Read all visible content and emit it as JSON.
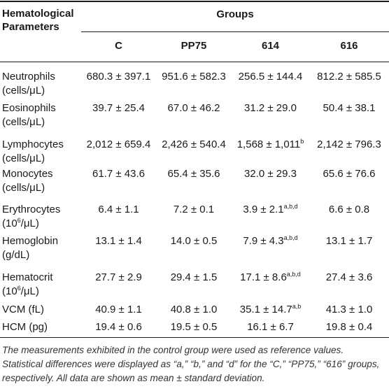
{
  "header": {
    "param_line1": "Hematological",
    "param_line2": "Parameters",
    "groups": "Groups",
    "columns": [
      "C",
      "PP75",
      "614",
      "616"
    ]
  },
  "rows": [
    {
      "label1": "Neutrophils",
      "label2": "(cells/μL)",
      "c": "680.3 ± 397.1",
      "pp75": "951.6 ± 582.3",
      "g614": "256.5 ± 144.4",
      "g614_sup": "",
      "g616": "812.2 ± 585.5"
    },
    {
      "label1": "Eosinophils",
      "label2": "(cells/μL)",
      "c": "39.7 ± 25.4",
      "pp75": "67.0 ± 46.2",
      "g614": "31.2 ± 29.0",
      "g614_sup": "",
      "g616": "50.4 ± 38.1"
    },
    {
      "label1": "Lymphocytes",
      "label2": "(cells/μL)",
      "c": "2,012 ± 659.4",
      "pp75": "2,426 ± 540.4",
      "g614": "1,568 ± 1,011",
      "g614_sup": "b",
      "g616": "2,142 ± 796.3"
    },
    {
      "label1": "Monocytes",
      "label2": "(cells/μL)",
      "c": "61.7 ± 43.6",
      "pp75": "65.4 ± 35.6",
      "g614": "32.0 ± 29.3",
      "g614_sup": "",
      "g616": "65.6 ± 76.6"
    },
    {
      "label1": "Erythrocytes",
      "label2_pre": "(10",
      "label2_sup": "6",
      "label2_post": "/μL)",
      "c": "6.4 ± 1.1",
      "pp75": "7.2 ± 0.1",
      "g614": "3.9 ± 2.1",
      "g614_sup": "a,b,d",
      "g616": "6.6 ± 0.8"
    },
    {
      "label1": "Hemoglobin",
      "label2": "(g/dL)",
      "c": "13.1 ± 1.4",
      "pp75": "14.0 ± 0.5",
      "g614": "7.9 ± 4.3",
      "g614_sup": "a,b,d",
      "g616": "13.1 ± 1.7"
    },
    {
      "label1": "Hematocrit",
      "label2_pre": "(10",
      "label2_sup": "6",
      "label2_post": "/μL)",
      "c": "27.7 ± 2.9",
      "pp75": "29.4 ± 1.5",
      "g614": "17.1 ± 8.6",
      "g614_sup": "a,b,d",
      "g616": "27.4 ± 3.6"
    },
    {
      "label1": "VCM (fL)",
      "c": "40.9 ± 1.1",
      "pp75": "40.8 ± 1.0",
      "g614": "35.1 ± 14.7",
      "g614_sup": "a,b",
      "g616": "41.3 ± 1.0"
    },
    {
      "label1": "HCM (pg)",
      "c": "19.4 ± 0.6",
      "pp75": "19.5 ± 0.5",
      "g614": "16.1 ± 6.7",
      "g614_sup": "",
      "g616": "19.8 ± 0.4"
    }
  ],
  "footnote": "The measurements exhibited in the control group were used as reference values. Statistical differences were displayed as “a,” “b,” and “d” for the “C,” “PP75,” “616” groups, respectively. All data are shown as mean ± standard deviation."
}
